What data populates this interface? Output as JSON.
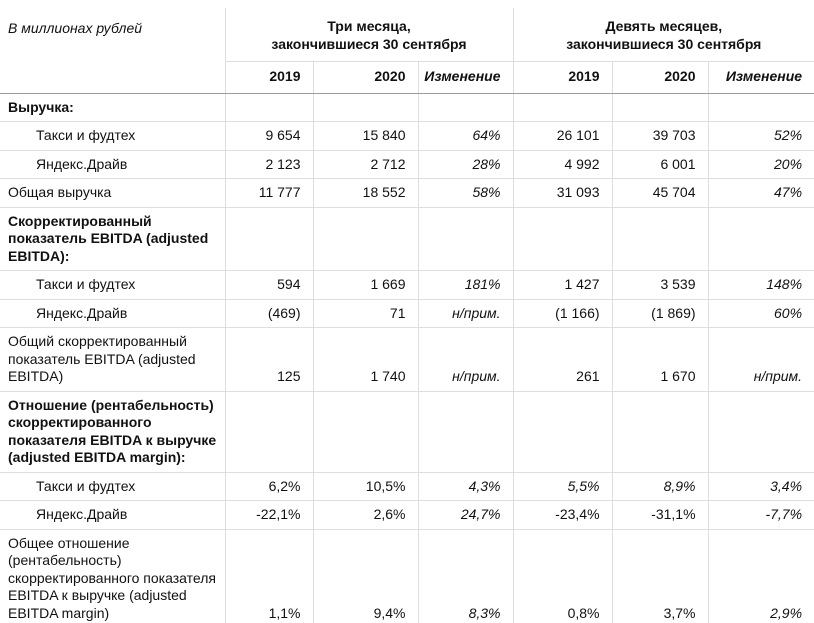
{
  "colors": {
    "background": "#ffffff",
    "text": "#111111",
    "grid_line": "#dedede",
    "header_rule": "#9c9c9c"
  },
  "table": {
    "units_label": "В миллионах рублей",
    "groups": [
      {
        "label": "Три месяца,\nзакончившиеся 30 сентября",
        "columns": [
          "2019",
          "2020",
          "Изменение"
        ]
      },
      {
        "label": "Девять месяцев,\nзакончившиеся 30 сентября",
        "columns": [
          "2019",
          "2020",
          "Изменение"
        ]
      }
    ],
    "rows": [
      {
        "label": "Выручка:",
        "bold": true,
        "indent": false,
        "values": [
          "",
          "",
          "",
          "",
          "",
          ""
        ],
        "italics": [
          false,
          false,
          false,
          false,
          false,
          false
        ]
      },
      {
        "label": "Такси и фудтех",
        "bold": false,
        "indent": true,
        "values": [
          "9 654",
          "15 840",
          "64%",
          "26 101",
          "39 703",
          "52%"
        ],
        "italics": [
          false,
          false,
          true,
          false,
          false,
          true
        ]
      },
      {
        "label": "Яндекс.Драйв",
        "bold": false,
        "indent": true,
        "values": [
          "2 123",
          "2 712",
          "28%",
          "4 992",
          "6 001",
          "20%"
        ],
        "italics": [
          false,
          false,
          true,
          false,
          false,
          true
        ]
      },
      {
        "label": "Общая выручка",
        "bold": false,
        "indent": false,
        "values": [
          "11 777",
          "18 552",
          "58%",
          "31 093",
          "45 704",
          "47%"
        ],
        "italics": [
          false,
          false,
          true,
          false,
          false,
          true
        ]
      },
      {
        "label": "Скорректированный показатель EBITDA (adjusted EBITDA):",
        "bold": true,
        "indent": false,
        "values": [
          "",
          "",
          "",
          "",
          "",
          ""
        ],
        "italics": [
          false,
          false,
          false,
          false,
          false,
          false
        ]
      },
      {
        "label": "Такси и фудтех",
        "bold": false,
        "indent": true,
        "values": [
          "594",
          "1 669",
          "181%",
          "1 427",
          "3 539",
          "148%"
        ],
        "italics": [
          false,
          false,
          true,
          false,
          false,
          true
        ]
      },
      {
        "label": "Яндекс.Драйв",
        "bold": false,
        "indent": true,
        "values": [
          "(469)",
          "71",
          "н/прим.",
          "(1 166)",
          "(1 869)",
          "60%"
        ],
        "italics": [
          false,
          false,
          true,
          false,
          false,
          true
        ]
      },
      {
        "label": "Общий скорректированный показатель EBITDA (adjusted EBITDA)",
        "bold": false,
        "indent": false,
        "values": [
          "125",
          "1 740",
          "н/прим.",
          "261",
          "1 670",
          "н/прим."
        ],
        "italics": [
          false,
          false,
          true,
          false,
          false,
          true
        ]
      },
      {
        "label": "Отношение (рентабельность) скорректированного показателя EBITDA к выручке (adjusted EBITDA margin):",
        "bold": true,
        "indent": false,
        "values": [
          "",
          "",
          "",
          "",
          "",
          ""
        ],
        "italics": [
          false,
          false,
          false,
          false,
          false,
          false
        ]
      },
      {
        "label": "Такси и фудтех",
        "bold": false,
        "indent": true,
        "values": [
          "6,2%",
          "10,5%",
          "4,3%",
          "5,5%",
          "8,9%",
          "3,4%"
        ],
        "italics": [
          false,
          false,
          true,
          true,
          true,
          true
        ]
      },
      {
        "label": "Яндекс.Драйв",
        "bold": false,
        "indent": true,
        "values": [
          "-22,1%",
          "2,6%",
          "24,7%",
          "-23,4%",
          "-31,1%",
          "-7,7%"
        ],
        "italics": [
          false,
          false,
          true,
          false,
          false,
          true
        ]
      },
      {
        "label": "Общее отношение (рентабельность) скорректированного показателя EBITDA к выручке (adjusted EBITDA margin)",
        "bold": false,
        "indent": false,
        "values": [
          "1,1%",
          "9,4%",
          "8,3%",
          "0,8%",
          "3,7%",
          "2,9%"
        ],
        "italics": [
          false,
          false,
          true,
          false,
          false,
          true
        ]
      }
    ]
  }
}
